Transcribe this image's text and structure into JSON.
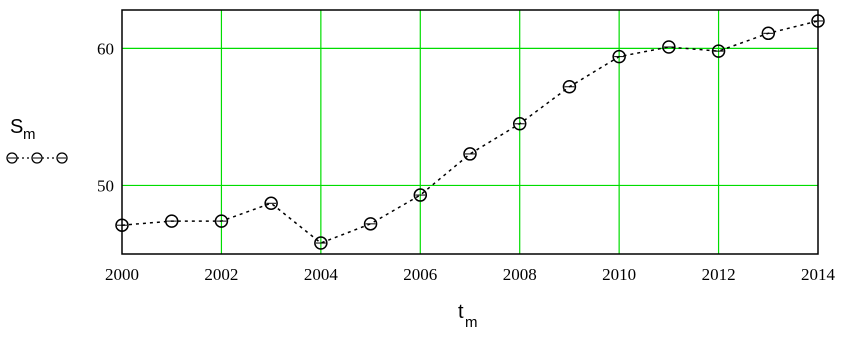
{
  "chart_data": {
    "type": "line",
    "x": [
      2000,
      2001,
      2002,
      2003,
      2004,
      2005,
      2006,
      2007,
      2008,
      2009,
      2010,
      2011,
      2012,
      2013,
      2014
    ],
    "series": [
      {
        "values": [
          47.1,
          47.4,
          47.4,
          48.7,
          45.8,
          47.2,
          49.3,
          52.3,
          54.5,
          57.2,
          59.4,
          60.1,
          59.8,
          61.1,
          62.0
        ]
      }
    ],
    "xlabel": "t",
    "xlabel_subscript": "m",
    "ylabel": "S",
    "ylabel_subscript": "m",
    "xlim": [
      2000,
      2014
    ],
    "ylim": [
      45,
      62.8
    ],
    "x_ticks": [
      2000,
      2002,
      2004,
      2006,
      2008,
      2010,
      2012,
      2014
    ],
    "y_ticks": [
      50,
      60
    ],
    "grid": true,
    "grid_color": "#00dd00",
    "line_style": "dotted",
    "marker": "circle",
    "line_color": "#000000"
  }
}
